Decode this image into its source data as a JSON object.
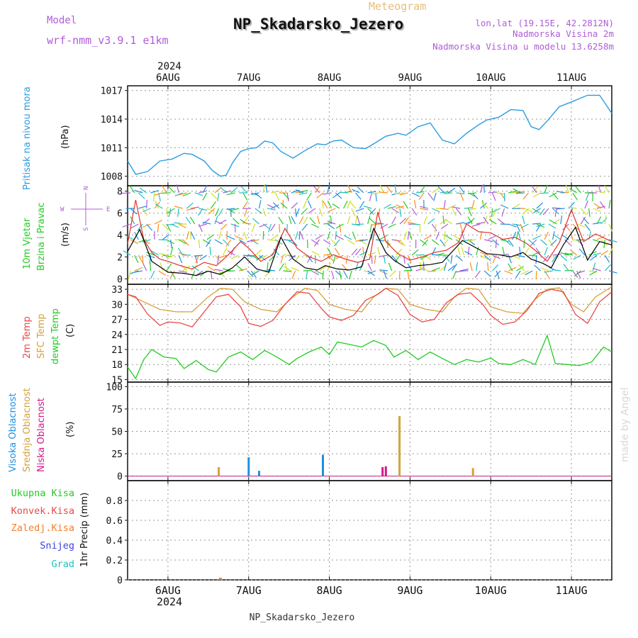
{
  "header": {
    "model_label": "Model",
    "model_value": "wrf-nmm_v3.9.1  e1km",
    "super_title": "Meteogram",
    "station_title": "NP_Skadarsko_Jezero",
    "lonlat": "lon,lat (19.15E, 42.2812N)",
    "altitude": "Nadmorska Visina 2m",
    "model_altitude": "Nadmorska Visina u modelu 13.6258m",
    "footer_station": "NP_Skadarsko_Jezero",
    "watermark": "made by Angel"
  },
  "colors": {
    "pressure": "#2a9de0",
    "t2m": "#e84848",
    "tsfc": "#d4a13a",
    "dewpt": "#22cc22",
    "high_cloud": "#1e90e0",
    "mid_cloud": "#d4a13a",
    "low_cloud": "#d01a8a",
    "model_purple": "#b05cd8",
    "wind_speed": "#000000",
    "gust": "#e03030"
  },
  "chart_data": [
    {
      "type": "line",
      "panel": "pressure",
      "ylabel_side": "Pritisak na nivou mora",
      "unit": "(hPa)",
      "ylim": [
        1007,
        1017.5
      ],
      "yticks": [
        1008,
        1011,
        1014,
        1017
      ],
      "xlim": [
        5.5,
        11.5
      ],
      "top_year": "2024",
      "top_dates": [
        "6AUG",
        "7AUG",
        "8AUG",
        "9AUG",
        "10AUG",
        "11AUG"
      ],
      "grid": true,
      "series": [
        {
          "x": [
            5.5,
            5.6,
            5.75,
            5.9,
            6.05,
            6.2,
            6.3,
            6.45,
            6.55,
            6.65,
            6.72,
            6.8,
            6.9,
            7.0,
            7.1,
            7.2,
            7.3,
            7.4,
            7.55,
            7.7,
            7.85,
            7.95,
            8.05,
            8.15,
            8.3,
            8.45,
            8.55,
            8.7,
            8.85,
            8.95,
            9.1,
            9.25,
            9.4,
            9.55,
            9.7,
            9.85,
            9.95,
            10.1,
            10.25,
            10.4,
            10.5,
            10.6,
            10.7,
            10.85,
            11.0,
            11.2,
            11.35,
            11.5
          ],
          "y": [
            1009.6,
            1008.2,
            1008.5,
            1009.6,
            1009.8,
            1010.4,
            1010.3,
            1009.6,
            1008.6,
            1008.0,
            1008.1,
            1009.4,
            1010.6,
            1010.9,
            1011.0,
            1011.7,
            1011.5,
            1010.6,
            1009.9,
            1010.7,
            1011.4,
            1011.3,
            1011.7,
            1011.8,
            1011.0,
            1010.9,
            1011.4,
            1012.2,
            1012.5,
            1012.3,
            1013.2,
            1013.6,
            1011.8,
            1011.4,
            1012.5,
            1013.4,
            1013.9,
            1014.2,
            1015.0,
            1014.9,
            1013.2,
            1012.9,
            1013.8,
            1015.3,
            1015.8,
            1016.5,
            1016.5,
            1014.6
          ]
        }
      ]
    },
    {
      "type": "line",
      "panel": "wind",
      "ylabel_side": "10m Vjetar",
      "ylabel_side2": "Brzina i Pravac",
      "unit": "(m/s)",
      "compass_w": "W",
      "compass_e": "E",
      "compass_n": "N",
      "compass_s": "S",
      "ylim": [
        -0.5,
        8.5
      ],
      "yticks": [
        0,
        2,
        4,
        6,
        8
      ],
      "xlim": [
        5.5,
        11.5
      ],
      "grid": true,
      "series": [
        {
          "role": "wind_speed",
          "x": [
            5.5,
            5.65,
            5.8,
            6.0,
            6.2,
            6.35,
            6.5,
            6.65,
            6.8,
            6.95,
            7.1,
            7.25,
            7.4,
            7.55,
            7.7,
            7.85,
            7.95,
            8.1,
            8.25,
            8.4,
            8.55,
            8.7,
            8.8,
            8.95,
            9.1,
            9.25,
            9.4,
            9.55,
            9.65,
            9.8,
            9.95,
            10.1,
            10.25,
            10.4,
            10.5,
            10.65,
            10.75,
            10.9,
            11.05,
            11.2,
            11.35,
            11.5
          ],
          "y": [
            2.5,
            4.5,
            1.6,
            0.6,
            0.5,
            0.3,
            0.7,
            0.4,
            1.0,
            2.0,
            0.9,
            0.6,
            3.8,
            1.8,
            1.0,
            0.8,
            1.2,
            0.9,
            0.8,
            1.1,
            4.6,
            2.4,
            1.7,
            1.0,
            1.2,
            1.3,
            1.5,
            2.7,
            3.5,
            2.9,
            2.3,
            2.2,
            2.0,
            2.4,
            1.8,
            1.4,
            1.0,
            3.1,
            4.7,
            1.7,
            3.4,
            3.1
          ]
        },
        {
          "role": "gust",
          "x": [
            5.5,
            5.6,
            5.7,
            5.8,
            5.9,
            6.0,
            6.15,
            6.3,
            6.45,
            6.6,
            6.75,
            6.9,
            7.0,
            7.15,
            7.3,
            7.45,
            7.6,
            7.75,
            7.9,
            8.05,
            8.2,
            8.35,
            8.5,
            8.6,
            8.7,
            8.85,
            9.0,
            9.15,
            9.3,
            9.45,
            9.6,
            9.7,
            9.85,
            10.0,
            10.15,
            10.3,
            10.45,
            10.55,
            10.7,
            10.85,
            11.0,
            11.15,
            11.3,
            11.5
          ],
          "y": [
            3.2,
            7.2,
            3.6,
            2.4,
            1.8,
            1.6,
            1.2,
            0.9,
            1.5,
            1.2,
            2.2,
            3.4,
            2.8,
            1.6,
            2.2,
            4.6,
            2.8,
            2.0,
            1.6,
            2.2,
            1.8,
            1.5,
            1.8,
            6.1,
            3.4,
            2.3,
            1.7,
            2.0,
            2.4,
            2.6,
            3.3,
            5.0,
            4.3,
            4.2,
            3.6,
            3.8,
            3.2,
            2.6,
            1.6,
            3.3,
            6.3,
            3.4,
            4.1,
            3.4
          ]
        }
      ]
    },
    {
      "type": "line",
      "panel": "temperature",
      "ylabel_side": "2m Temp",
      "ylabel_side2": "SFC Temp",
      "ylabel_side3": "dewpt Temp",
      "unit": "(C)",
      "ylim": [
        14.5,
        34
      ],
      "yticks": [
        15,
        18,
        21,
        24,
        27,
        30,
        33
      ],
      "xlim": [
        5.5,
        11.5
      ],
      "grid": true,
      "series": [
        {
          "role": "t2m",
          "x": [
            5.5,
            5.6,
            5.75,
            5.9,
            6.0,
            6.15,
            6.3,
            6.45,
            6.6,
            6.75,
            6.9,
            7.0,
            7.15,
            7.3,
            7.45,
            7.6,
            7.75,
            7.9,
            8.0,
            8.15,
            8.3,
            8.45,
            8.6,
            8.7,
            8.85,
            9.0,
            9.15,
            9.3,
            9.45,
            9.6,
            9.75,
            9.9,
            10.0,
            10.15,
            10.3,
            10.45,
            10.6,
            10.75,
            10.9,
            11.05,
            11.2,
            11.35,
            11.5
          ],
          "y": [
            32.0,
            31.5,
            28.0,
            25.8,
            26.5,
            26.3,
            25.5,
            28.5,
            31.5,
            32.0,
            29.5,
            26.2,
            25.6,
            26.8,
            30.0,
            32.5,
            32.2,
            29.2,
            27.5,
            26.8,
            27.8,
            30.8,
            32.0,
            33.2,
            31.8,
            28.0,
            26.5,
            27.0,
            30.3,
            32.0,
            32.3,
            30.0,
            27.8,
            26.0,
            26.5,
            28.8,
            32.2,
            33.0,
            32.5,
            28.0,
            26.2,
            30.5,
            32.5
          ]
        },
        {
          "role": "tsfc",
          "x": [
            5.5,
            5.7,
            5.9,
            6.1,
            6.3,
            6.5,
            6.65,
            6.8,
            6.95,
            7.15,
            7.35,
            7.55,
            7.7,
            7.85,
            8.0,
            8.2,
            8.4,
            8.55,
            8.7,
            8.85,
            9.0,
            9.2,
            9.4,
            9.55,
            9.7,
            9.85,
            10.0,
            10.2,
            10.4,
            10.55,
            10.7,
            10.85,
            11.0,
            11.15,
            11.3,
            11.5
          ],
          "y": [
            32.0,
            30.5,
            29.0,
            28.5,
            28.5,
            31.5,
            33.2,
            33.0,
            30.5,
            29.0,
            28.5,
            31.5,
            33.2,
            32.8,
            30.0,
            29.0,
            28.5,
            31.5,
            33.2,
            33.0,
            30.0,
            29.0,
            28.5,
            31.5,
            33.2,
            33.0,
            29.5,
            28.5,
            28.2,
            31.0,
            33.0,
            33.3,
            30.0,
            28.5,
            31.5,
            33.5
          ]
        },
        {
          "role": "dewpt",
          "x": [
            5.5,
            5.6,
            5.7,
            5.8,
            5.95,
            6.1,
            6.2,
            6.35,
            6.5,
            6.6,
            6.75,
            6.9,
            7.05,
            7.2,
            7.35,
            7.5,
            7.6,
            7.75,
            7.9,
            8.0,
            8.1,
            8.25,
            8.4,
            8.55,
            8.7,
            8.8,
            8.95,
            9.1,
            9.25,
            9.4,
            9.55,
            9.7,
            9.85,
            10.0,
            10.1,
            10.25,
            10.4,
            10.55,
            10.7,
            10.8,
            10.95,
            11.1,
            11.25,
            11.4,
            11.5
          ],
          "y": [
            17.5,
            15.2,
            19.0,
            21.0,
            19.5,
            19.2,
            17.2,
            18.8,
            17.0,
            16.5,
            19.5,
            20.5,
            19.0,
            20.8,
            19.5,
            18.0,
            19.2,
            20.5,
            21.5,
            20.0,
            22.5,
            22.0,
            21.5,
            22.8,
            21.8,
            19.5,
            20.8,
            19.0,
            20.5,
            19.2,
            18.0,
            19.0,
            18.5,
            19.3,
            18.2,
            18.0,
            19.0,
            18.0,
            23.8,
            18.2,
            18.0,
            17.8,
            18.5,
            21.5,
            20.5
          ]
        }
      ]
    },
    {
      "type": "bar",
      "panel": "clouds",
      "ylabel_side": "Visoka Oblacnost",
      "ylabel_side2": "Srednja Oblacnost",
      "ylabel_side3": "Niska Oblacnost",
      "unit": "(%)",
      "ylim": [
        -5,
        105
      ],
      "yticks": [
        0,
        25,
        50,
        75,
        100
      ],
      "xlim": [
        5.5,
        11.5
      ],
      "grid": true,
      "series": [
        {
          "role": "high_cloud",
          "x": [
            7.0,
            7.13,
            7.92
          ],
          "values": [
            21,
            6,
            24
          ]
        },
        {
          "role": "mid_cloud",
          "x": [
            6.63,
            8.87,
            9.78
          ],
          "values": [
            10,
            67,
            9
          ]
        },
        {
          "role": "low_cloud",
          "x": [
            8.66,
            8.7
          ],
          "values": [
            10,
            11
          ]
        }
      ]
    },
    {
      "type": "bar",
      "panel": "precip",
      "legend": [
        "Ukupna  Kisa",
        "Konvek.Kisa",
        "Zaledj.Kisa",
        "Snijeg",
        "Grad"
      ],
      "legend_colors": [
        "#22cc22",
        "#e84848",
        "#f08030",
        "#4040e0",
        "#22c0c0"
      ],
      "ylabel": "1hr Precip (mm)",
      "ylim": [
        0,
        1.0
      ],
      "yticks": [
        0,
        0.2,
        0.4,
        0.6,
        0.8
      ],
      "xlim": [
        5.5,
        11.5
      ],
      "bottom_dates": [
        "6AUG",
        "7AUG",
        "8AUG",
        "9AUG",
        "10AUG",
        "11AUG"
      ],
      "bottom_year": "2024",
      "grid": true,
      "series": [
        {
          "role": "Ukupna Kisa",
          "x": [
            6.65
          ],
          "values": [
            0.01
          ]
        }
      ]
    }
  ]
}
